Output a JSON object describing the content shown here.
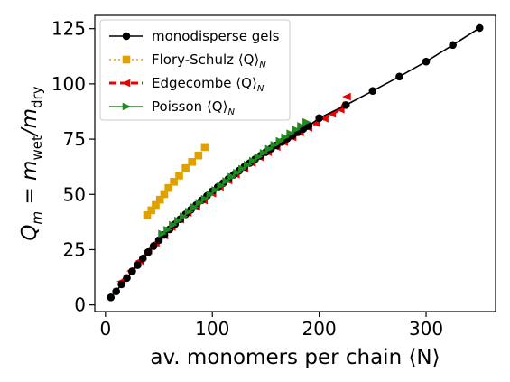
{
  "chart_data": {
    "type": "line",
    "xlabel": "av. monomers per chain ⟨N⟩",
    "ylabel_parts": [
      "Q",
      "m",
      " = m",
      "wet",
      "/m",
      "dry"
    ],
    "xlim": [
      -10,
      365
    ],
    "ylim": [
      -3,
      131
    ],
    "xticks": [
      0,
      100,
      200,
      300
    ],
    "yticks": [
      0,
      25,
      50,
      75,
      100,
      125
    ],
    "grid": false,
    "legend_placement": "top-left",
    "series": [
      {
        "name": "monodisperse gels",
        "color": "#000000",
        "line": "solid",
        "marker": "circle",
        "x": [
          5,
          10,
          15,
          20,
          25,
          30,
          35,
          40,
          45,
          50,
          55,
          60,
          65,
          70,
          75,
          80,
          85,
          90,
          95,
          100,
          105,
          110,
          115,
          120,
          125,
          130,
          135,
          140,
          145,
          150,
          155,
          160,
          165,
          170,
          175,
          180,
          185,
          190,
          200,
          225,
          250,
          275,
          300,
          325,
          350
        ],
        "y": [
          3.4,
          6.1,
          9.3,
          12.2,
          15.2,
          18.0,
          21.0,
          23.9,
          26.6,
          29.3,
          31.7,
          34.2,
          36.5,
          38.8,
          41.0,
          43.1,
          45.2,
          47.3,
          49.3,
          51.4,
          53.3,
          55.1,
          57.0,
          58.9,
          60.7,
          62.5,
          64.2,
          65.9,
          67.5,
          69.1,
          70.7,
          72.2,
          73.7,
          75.2,
          76.7,
          78.1,
          79.6,
          81.0,
          84.5,
          90.4,
          96.8,
          103.3,
          110.1,
          117.6,
          125.3
        ]
      },
      {
        "name": "Flory-Schulz ⟨Q⟩",
        "name_sub": "N",
        "color": "#e0a000",
        "line": "dotted",
        "marker": "square",
        "x": [
          39,
          43,
          47,
          51,
          55,
          59,
          64,
          69,
          75,
          81,
          87,
          93
        ],
        "y": [
          40.6,
          42.8,
          45.2,
          47.6,
          50.1,
          52.9,
          55.7,
          58.5,
          61.9,
          64.7,
          67.6,
          71.4
        ]
      },
      {
        "name": "Edgecombe ⟨Q⟩",
        "name_sub": "N",
        "color": "#ee0000",
        "line": "dashed",
        "marker": "triangle-left",
        "x": [
          15,
          24,
          32,
          40,
          47,
          55,
          62,
          70,
          77,
          85,
          92,
          100,
          107,
          115,
          122,
          130,
          137,
          145,
          152,
          160,
          167,
          175,
          182,
          190,
          197,
          205,
          212,
          220,
          226
        ],
        "y": [
          10.6,
          15.4,
          19.9,
          24.6,
          28.0,
          31.4,
          35.2,
          38.6,
          41.7,
          44.4,
          47.2,
          50.4,
          53.4,
          56.3,
          59.0,
          61.7,
          64.2,
          66.7,
          69.1,
          71.4,
          73.6,
          75.8,
          78.0,
          80.1,
          82.2,
          84.3,
          86.4,
          88.4,
          94.2
        ]
      },
      {
        "name": "Poisson ⟨Q⟩",
        "name_sub": "N",
        "color": "#1f8a1f",
        "line": "solid",
        "marker": "triangle-right",
        "x": [
          53,
          58,
          63,
          68,
          73,
          78,
          83,
          88,
          93,
          98,
          103,
          108,
          113,
          118,
          123,
          128,
          133,
          138,
          143,
          148,
          153,
          158,
          163,
          168,
          173,
          178,
          183,
          188
        ],
        "y": [
          32.2,
          34.0,
          36.2,
          38.2,
          40.0,
          42.2,
          44.2,
          46.2,
          48.0,
          50.0,
          52.0,
          54.0,
          56.0,
          58.0,
          59.8,
          61.6,
          63.4,
          65.2,
          67.0,
          68.8,
          70.6,
          72.4,
          74.2,
          75.9,
          77.6,
          79.3,
          81.0,
          82.7
        ]
      }
    ]
  }
}
